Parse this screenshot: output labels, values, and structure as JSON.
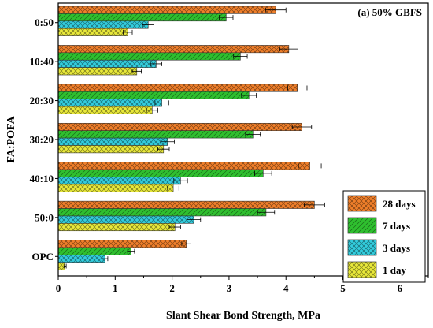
{
  "chart_data": {
    "type": "bar",
    "orientation": "horizontal",
    "annotation": "(a) 50% GBFS",
    "xlabel": "Slant Shear Bond Strength, MPa",
    "ylabel": "FA:POFA",
    "xlim": [
      0,
      6.5
    ],
    "xticks": [
      0,
      1,
      2,
      3,
      4,
      5,
      6
    ],
    "categories": [
      "0:50",
      "10:40",
      "20:30",
      "30:20",
      "40:10",
      "50:0",
      "OPC"
    ],
    "series": [
      {
        "name": "28 days",
        "color": "#f07f2a",
        "pattern": "crosshatch",
        "values": [
          3.82,
          4.05,
          4.2,
          4.28,
          4.42,
          4.5,
          2.25
        ],
        "errors": [
          0.18,
          0.16,
          0.17,
          0.17,
          0.2,
          0.18,
          0.08
        ]
      },
      {
        "name": "7 days",
        "color": "#2fbf2f",
        "pattern": "hatch",
        "values": [
          2.95,
          3.2,
          3.35,
          3.42,
          3.6,
          3.65,
          1.28
        ],
        "errors": [
          0.12,
          0.12,
          0.13,
          0.13,
          0.15,
          0.15,
          0.06
        ]
      },
      {
        "name": "3 days",
        "color": "#33ccdd",
        "pattern": "crosshatch",
        "values": [
          1.58,
          1.72,
          1.82,
          1.92,
          2.15,
          2.38,
          0.82
        ],
        "errors": [
          0.1,
          0.1,
          0.12,
          0.12,
          0.12,
          0.12,
          0.05
        ]
      },
      {
        "name": "1 day",
        "color": "#e8e83a",
        "pattern": "crosshatch",
        "values": [
          1.22,
          1.38,
          1.65,
          1.85,
          2.02,
          2.05,
          0.12
        ],
        "errors": [
          0.08,
          0.08,
          0.1,
          0.1,
          0.1,
          0.1,
          0.02
        ]
      }
    ],
    "legend": "bottom-right",
    "grid": false
  }
}
